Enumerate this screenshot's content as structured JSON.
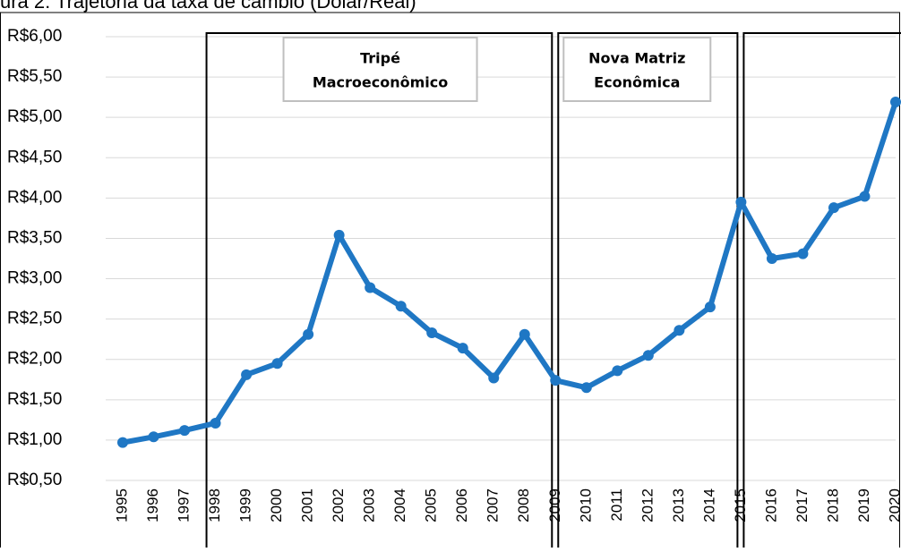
{
  "chart_data": {
    "type": "line",
    "title": "ura 2: Trajetória da taxa de câmbio (Dólar/Real)",
    "categories": [
      "1995",
      "1996",
      "1997",
      "1998",
      "1999",
      "2000",
      "2001",
      "2002",
      "2003",
      "2004",
      "2005",
      "2006",
      "2007",
      "2008",
      "2009",
      "2010",
      "2011",
      "2012",
      "2013",
      "2014",
      "2015",
      "2016",
      "2017",
      "2018",
      "2019",
      "2020"
    ],
    "series": [
      {
        "color": "#1f77c4",
        "values": [
          0.97,
          1.04,
          1.12,
          1.21,
          1.81,
          1.95,
          2.31,
          3.54,
          2.89,
          2.66,
          2.33,
          2.14,
          1.77,
          2.31,
          1.74,
          1.65,
          1.86,
          2.05,
          2.36,
          2.65,
          3.95,
          3.25,
          3.31,
          3.88,
          4.02,
          5.19
        ]
      }
    ],
    "ylim": [
      0.5,
      6.0
    ],
    "yticks": [
      {
        "value": 0.5,
        "label": "R$0,50"
      },
      {
        "value": 1.0,
        "label": "R$1,00"
      },
      {
        "value": 1.5,
        "label": "R$1,50"
      },
      {
        "value": 2.0,
        "label": "R$2,00"
      },
      {
        "value": 2.5,
        "label": "R$2,50"
      },
      {
        "value": 3.0,
        "label": "R$3,00"
      },
      {
        "value": 3.5,
        "label": "R$3,50"
      },
      {
        "value": 4.0,
        "label": "R$4,00"
      },
      {
        "value": 4.5,
        "label": "R$4,50"
      },
      {
        "value": 5.0,
        "label": "R$5,00"
      },
      {
        "value": 5.5,
        "label": "R$5,50"
      },
      {
        "value": 6.0,
        "label": "R$6,00"
      }
    ],
    "grid": true,
    "periods": [
      {
        "start": "1998",
        "end": "2009",
        "label": [
          "Tripé",
          "Macroeconômico"
        ]
      },
      {
        "start": "2009",
        "end": "2015",
        "label": [
          "Nova Matriz",
          "Econômica"
        ]
      },
      {
        "start": "2015",
        "end": "2020"
      }
    ]
  }
}
